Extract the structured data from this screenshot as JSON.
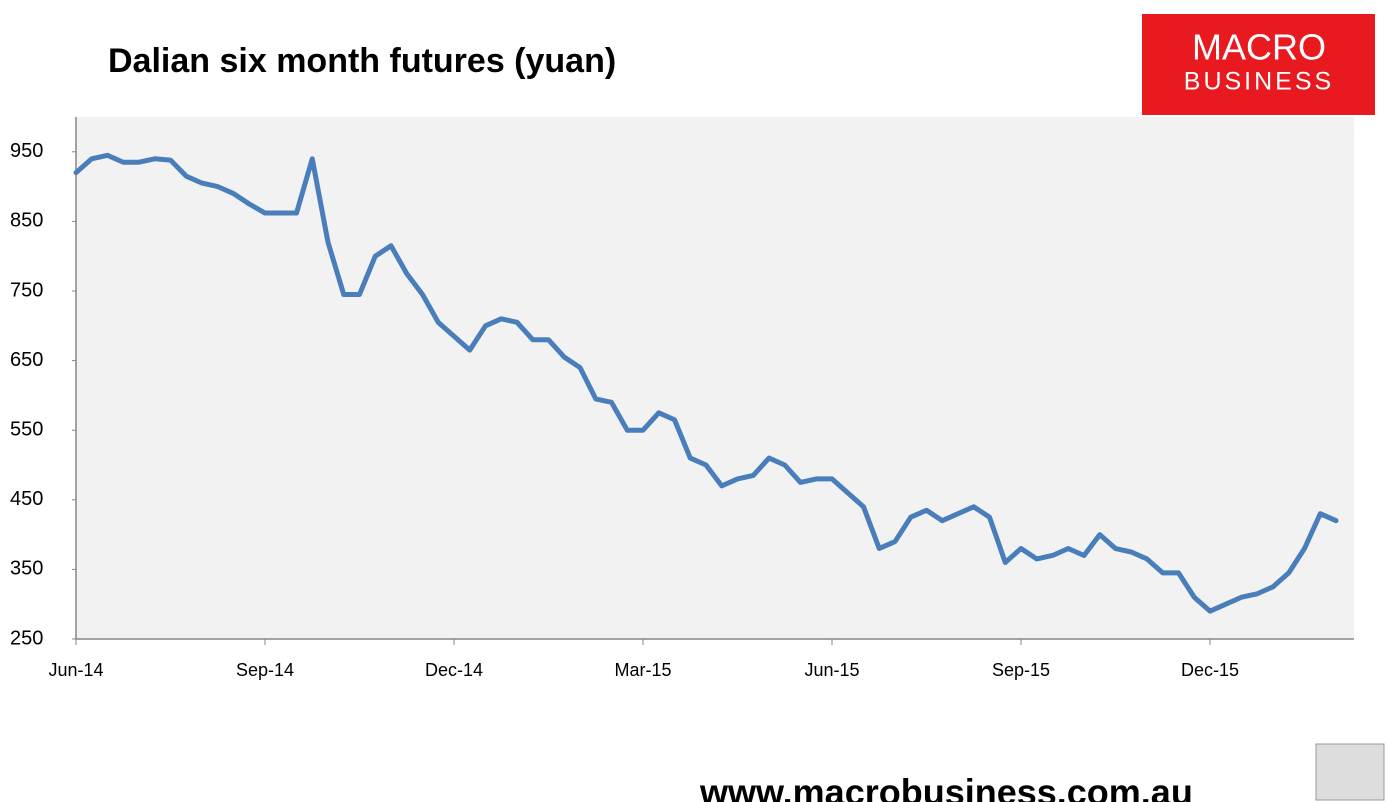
{
  "chart_data": {
    "type": "line",
    "title": "Dalian six month futures (yuan)",
    "logo": {
      "top": "MACRO",
      "bottom": "BUSINESS"
    },
    "source": "www.macrobusiness.com.au",
    "categories": [
      "Jun-14",
      null,
      null,
      null,
      null,
      null,
      null,
      null,
      null,
      null,
      null,
      null,
      "Sep-14",
      null,
      null,
      null,
      null,
      null,
      null,
      null,
      null,
      null,
      null,
      null,
      "Dec-14",
      null,
      null,
      null,
      null,
      null,
      null,
      null,
      null,
      null,
      null,
      null,
      "Mar-15",
      null,
      null,
      null,
      null,
      null,
      null,
      null,
      null,
      null,
      null,
      null,
      "Jun-15",
      null,
      null,
      null,
      null,
      null,
      null,
      null,
      null,
      null,
      null,
      null,
      "Sep-15",
      null,
      null,
      null,
      null,
      null,
      null,
      null,
      null,
      null,
      null,
      null,
      "Dec-15",
      null,
      null,
      null,
      null,
      null,
      null,
      null,
      null
    ],
    "series": [
      {
        "name": "Dalian six month futures",
        "color": "#4a7ebb",
        "values": [
          920,
          940,
          945,
          935,
          935,
          940,
          938,
          915,
          905,
          900,
          890,
          875,
          862,
          862,
          862,
          940,
          820,
          745,
          745,
          800,
          815,
          775,
          745,
          705,
          685,
          665,
          700,
          710,
          705,
          680,
          680,
          655,
          640,
          595,
          590,
          550,
          550,
          575,
          565,
          510,
          500,
          470,
          480,
          485,
          510,
          500,
          475,
          480,
          480,
          460,
          440,
          380,
          390,
          425,
          435,
          420,
          430,
          440,
          425,
          360,
          380,
          365,
          370,
          380,
          370,
          400,
          380,
          375,
          365,
          345,
          345,
          310,
          290,
          300,
          310,
          315,
          325,
          345,
          380,
          430,
          420
        ]
      }
    ],
    "ylim": [
      250,
      1000
    ],
    "yticks": [
      250,
      350,
      450,
      550,
      650,
      750,
      850,
      950
    ],
    "grid": false
  }
}
